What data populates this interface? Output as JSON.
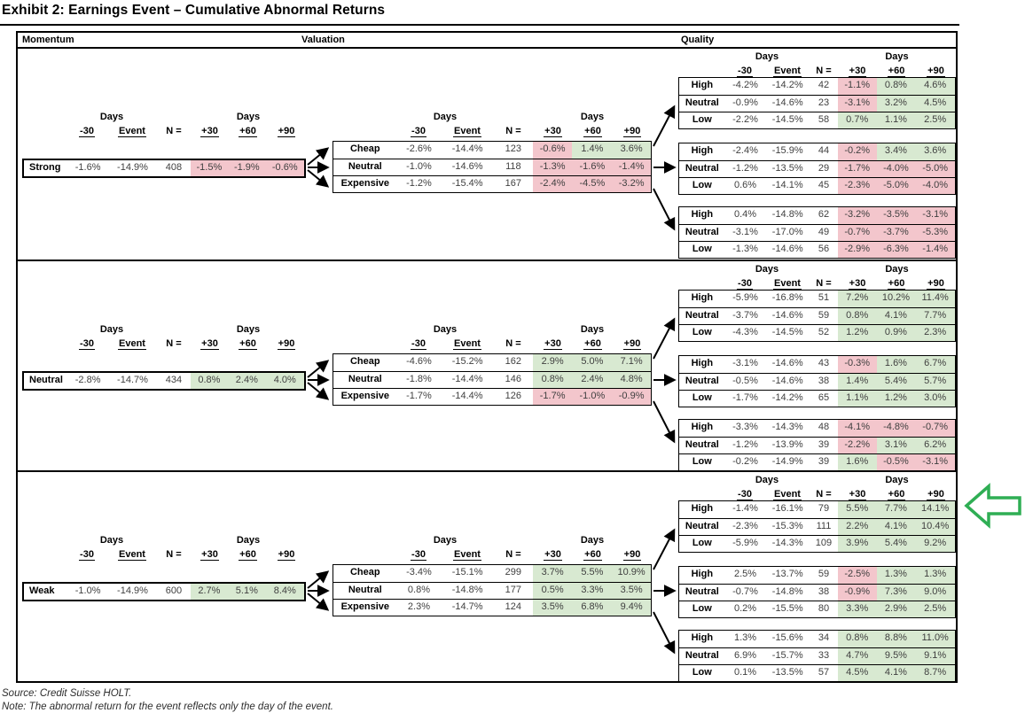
{
  "title": "Exhibit 2: Earnings Event – Cumulative Abnormal Returns",
  "source": "Source: Credit Suisse HOLT.",
  "note": "Note: The abnormal return for the event reflects only the day of the event.",
  "panel_headers": {
    "momentum": "Momentum",
    "valuation": "Valuation",
    "quality": "Quality"
  },
  "columns": {
    "days_label": "Days",
    "period_labels": [
      "-30",
      "Event",
      "N =",
      "+30",
      "+60",
      "+90"
    ]
  },
  "colors": {
    "positive_bg": "#d8e9d1",
    "negative_bg": "#f3c6cc",
    "line": "#000000",
    "highlight_arrow": "#2fae54"
  },
  "highlight_arrow": {
    "color": "#2fae54",
    "points_at": "High row of first Quality table in Weak momentum group",
    "section_index": 2,
    "table_index": 0,
    "row": "High"
  },
  "sections": [
    {
      "momentum": {
        "label": "Strong",
        "pre": [
          "-1.6%",
          "-14.9%",
          "408"
        ],
        "post": [
          [
            "-1.5%",
            "neg"
          ],
          [
            "-1.9%",
            "neg"
          ],
          [
            "-0.6%",
            "neg"
          ]
        ]
      },
      "valuation": [
        {
          "label": "Cheap",
          "pre": [
            "-2.6%",
            "-14.4%",
            "123"
          ],
          "post": [
            [
              "-0.6%",
              "neg"
            ],
            [
              "1.4%",
              "pos"
            ],
            [
              "3.6%",
              "pos"
            ]
          ]
        },
        {
          "label": "Neutral",
          "pre": [
            "-1.0%",
            "-14.6%",
            "118"
          ],
          "post": [
            [
              "-1.3%",
              "neg"
            ],
            [
              "-1.6%",
              "neg"
            ],
            [
              "-1.4%",
              "neg"
            ]
          ]
        },
        {
          "label": "Expensive",
          "pre": [
            "-1.2%",
            "-15.4%",
            "167"
          ],
          "post": [
            [
              "-2.4%",
              "neg"
            ],
            [
              "-4.5%",
              "neg"
            ],
            [
              "-3.2%",
              "neg"
            ]
          ]
        }
      ],
      "quality": [
        [
          {
            "label": "High",
            "pre": [
              "-4.2%",
              "-14.2%",
              "42"
            ],
            "post": [
              [
                "-1.1%",
                "neg"
              ],
              [
                "0.8%",
                "pos"
              ],
              [
                "4.6%",
                "pos"
              ]
            ]
          },
          {
            "label": "Neutral",
            "pre": [
              "-0.9%",
              "-14.6%",
              "23"
            ],
            "post": [
              [
                "-3.1%",
                "neg"
              ],
              [
                "3.2%",
                "pos"
              ],
              [
                "4.5%",
                "pos"
              ]
            ]
          },
          {
            "label": "Low",
            "pre": [
              "-2.2%",
              "-14.5%",
              "58"
            ],
            "post": [
              [
                "0.7%",
                "pos"
              ],
              [
                "1.1%",
                "pos"
              ],
              [
                "2.5%",
                "pos"
              ]
            ]
          }
        ],
        [
          {
            "label": "High",
            "pre": [
              "-2.4%",
              "-15.9%",
              "44"
            ],
            "post": [
              [
                "-0.2%",
                "neg"
              ],
              [
                "3.4%",
                "pos"
              ],
              [
                "3.6%",
                "pos"
              ]
            ]
          },
          {
            "label": "Neutral",
            "pre": [
              "-1.2%",
              "-13.5%",
              "29"
            ],
            "post": [
              [
                "-1.7%",
                "neg"
              ],
              [
                "-4.0%",
                "neg"
              ],
              [
                "-5.0%",
                "neg"
              ]
            ]
          },
          {
            "label": "Low",
            "pre": [
              "0.6%",
              "-14.1%",
              "45"
            ],
            "post": [
              [
                "-2.3%",
                "neg"
              ],
              [
                "-5.0%",
                "neg"
              ],
              [
                "-4.0%",
                "neg"
              ]
            ]
          }
        ],
        [
          {
            "label": "High",
            "pre": [
              "0.4%",
              "-14.8%",
              "62"
            ],
            "post": [
              [
                "-3.2%",
                "neg"
              ],
              [
                "-3.5%",
                "neg"
              ],
              [
                "-3.1%",
                "neg"
              ]
            ]
          },
          {
            "label": "Neutral",
            "pre": [
              "-3.1%",
              "-17.0%",
              "49"
            ],
            "post": [
              [
                "-0.7%",
                "neg"
              ],
              [
                "-3.7%",
                "neg"
              ],
              [
                "-5.3%",
                "neg"
              ]
            ]
          },
          {
            "label": "Low",
            "pre": [
              "-1.3%",
              "-14.6%",
              "56"
            ],
            "post": [
              [
                "-2.9%",
                "neg"
              ],
              [
                "-6.3%",
                "neg"
              ],
              [
                "-1.4%",
                "neg"
              ]
            ]
          }
        ]
      ]
    },
    {
      "momentum": {
        "label": "Neutral",
        "pre": [
          "-2.8%",
          "-14.7%",
          "434"
        ],
        "post": [
          [
            "0.8%",
            "pos"
          ],
          [
            "2.4%",
            "pos"
          ],
          [
            "4.0%",
            "pos"
          ]
        ]
      },
      "valuation": [
        {
          "label": "Cheap",
          "pre": [
            "-4.6%",
            "-15.2%",
            "162"
          ],
          "post": [
            [
              "2.9%",
              "pos"
            ],
            [
              "5.0%",
              "pos"
            ],
            [
              "7.1%",
              "pos"
            ]
          ]
        },
        {
          "label": "Neutral",
          "pre": [
            "-1.8%",
            "-14.4%",
            "146"
          ],
          "post": [
            [
              "0.8%",
              "pos"
            ],
            [
              "2.4%",
              "pos"
            ],
            [
              "4.8%",
              "pos"
            ]
          ]
        },
        {
          "label": "Expensive",
          "pre": [
            "-1.7%",
            "-14.4%",
            "126"
          ],
          "post": [
            [
              "-1.7%",
              "neg"
            ],
            [
              "-1.0%",
              "neg"
            ],
            [
              "-0.9%",
              "neg"
            ]
          ]
        }
      ],
      "quality": [
        [
          {
            "label": "High",
            "pre": [
              "-5.9%",
              "-16.8%",
              "51"
            ],
            "post": [
              [
                "7.2%",
                "pos"
              ],
              [
                "10.2%",
                "pos"
              ],
              [
                "11.4%",
                "pos"
              ]
            ]
          },
          {
            "label": "Neutral",
            "pre": [
              "-3.7%",
              "-14.6%",
              "59"
            ],
            "post": [
              [
                "0.8%",
                "pos"
              ],
              [
                "4.1%",
                "pos"
              ],
              [
                "7.7%",
                "pos"
              ]
            ]
          },
          {
            "label": "Low",
            "pre": [
              "-4.3%",
              "-14.5%",
              "52"
            ],
            "post": [
              [
                "1.2%",
                "pos"
              ],
              [
                "0.9%",
                "pos"
              ],
              [
                "2.3%",
                "pos"
              ]
            ]
          }
        ],
        [
          {
            "label": "High",
            "pre": [
              "-3.1%",
              "-14.6%",
              "43"
            ],
            "post": [
              [
                "-0.3%",
                "neg"
              ],
              [
                "1.6%",
                "pos"
              ],
              [
                "6.7%",
                "pos"
              ]
            ]
          },
          {
            "label": "Neutral",
            "pre": [
              "-0.5%",
              "-14.6%",
              "38"
            ],
            "post": [
              [
                "1.4%",
                "pos"
              ],
              [
                "5.4%",
                "pos"
              ],
              [
                "5.7%",
                "pos"
              ]
            ]
          },
          {
            "label": "Low",
            "pre": [
              "-1.7%",
              "-14.2%",
              "65"
            ],
            "post": [
              [
                "1.1%",
                "pos"
              ],
              [
                "1.2%",
                "pos"
              ],
              [
                "3.0%",
                "pos"
              ]
            ]
          }
        ],
        [
          {
            "label": "High",
            "pre": [
              "-3.3%",
              "-14.3%",
              "48"
            ],
            "post": [
              [
                "-4.1%",
                "neg"
              ],
              [
                "-4.8%",
                "neg"
              ],
              [
                "-0.7%",
                "neg"
              ]
            ]
          },
          {
            "label": "Neutral",
            "pre": [
              "-1.2%",
              "-13.9%",
              "39"
            ],
            "post": [
              [
                "-2.2%",
                "neg"
              ],
              [
                "3.1%",
                "pos"
              ],
              [
                "6.2%",
                "pos"
              ]
            ]
          },
          {
            "label": "Low",
            "pre": [
              "-0.2%",
              "-14.9%",
              "39"
            ],
            "post": [
              [
                "1.6%",
                "pos"
              ],
              [
                "-0.5%",
                "neg"
              ],
              [
                "-3.1%",
                "neg"
              ]
            ]
          }
        ]
      ]
    },
    {
      "momentum": {
        "label": "Weak",
        "pre": [
          "-1.0%",
          "-14.9%",
          "600"
        ],
        "post": [
          [
            "2.7%",
            "pos"
          ],
          [
            "5.1%",
            "pos"
          ],
          [
            "8.4%",
            "pos"
          ]
        ]
      },
      "valuation": [
        {
          "label": "Cheap",
          "pre": [
            "-3.4%",
            "-15.1%",
            "299"
          ],
          "post": [
            [
              "3.7%",
              "pos"
            ],
            [
              "5.5%",
              "pos"
            ],
            [
              "10.9%",
              "pos"
            ]
          ]
        },
        {
          "label": "Neutral",
          "pre": [
            "0.8%",
            "-14.8%",
            "177"
          ],
          "post": [
            [
              "0.5%",
              "pos"
            ],
            [
              "3.3%",
              "pos"
            ],
            [
              "3.5%",
              "pos"
            ]
          ]
        },
        {
          "label": "Expensive",
          "pre": [
            "2.3%",
            "-14.7%",
            "124"
          ],
          "post": [
            [
              "3.5%",
              "pos"
            ],
            [
              "6.8%",
              "pos"
            ],
            [
              "9.4%",
              "pos"
            ]
          ]
        }
      ],
      "quality": [
        [
          {
            "label": "High",
            "pre": [
              "-1.4%",
              "-16.1%",
              "79"
            ],
            "post": [
              [
                "5.5%",
                "pos"
              ],
              [
                "7.7%",
                "pos"
              ],
              [
                "14.1%",
                "pos"
              ]
            ]
          },
          {
            "label": "Neutral",
            "pre": [
              "-2.3%",
              "-15.3%",
              "111"
            ],
            "post": [
              [
                "2.2%",
                "pos"
              ],
              [
                "4.1%",
                "pos"
              ],
              [
                "10.4%",
                "pos"
              ]
            ]
          },
          {
            "label": "Low",
            "pre": [
              "-5.9%",
              "-14.3%",
              "109"
            ],
            "post": [
              [
                "3.9%",
                "pos"
              ],
              [
                "5.4%",
                "pos"
              ],
              [
                "9.2%",
                "pos"
              ]
            ]
          }
        ],
        [
          {
            "label": "High",
            "pre": [
              "2.5%",
              "-13.7%",
              "59"
            ],
            "post": [
              [
                "-2.5%",
                "neg"
              ],
              [
                "1.3%",
                "pos"
              ],
              [
                "1.3%",
                "pos"
              ]
            ]
          },
          {
            "label": "Neutral",
            "pre": [
              "-0.7%",
              "-14.8%",
              "38"
            ],
            "post": [
              [
                "-0.9%",
                "neg"
              ],
              [
                "7.3%",
                "pos"
              ],
              [
                "9.0%",
                "pos"
              ]
            ]
          },
          {
            "label": "Low",
            "pre": [
              "0.2%",
              "-15.5%",
              "80"
            ],
            "post": [
              [
                "3.3%",
                "pos"
              ],
              [
                "2.9%",
                "pos"
              ],
              [
                "2.5%",
                "pos"
              ]
            ]
          }
        ],
        [
          {
            "label": "High",
            "pre": [
              "1.3%",
              "-15.6%",
              "34"
            ],
            "post": [
              [
                "0.8%",
                "pos"
              ],
              [
                "8.8%",
                "pos"
              ],
              [
                "11.0%",
                "pos"
              ]
            ]
          },
          {
            "label": "Neutral",
            "pre": [
              "6.9%",
              "-15.7%",
              "33"
            ],
            "post": [
              [
                "4.7%",
                "pos"
              ],
              [
                "9.5%",
                "pos"
              ],
              [
                "9.1%",
                "pos"
              ]
            ]
          },
          {
            "label": "Low",
            "pre": [
              "0.1%",
              "-13.5%",
              "57"
            ],
            "post": [
              [
                "4.5%",
                "pos"
              ],
              [
                "4.1%",
                "pos"
              ],
              [
                "8.7%",
                "pos"
              ]
            ]
          }
        ]
      ]
    }
  ]
}
